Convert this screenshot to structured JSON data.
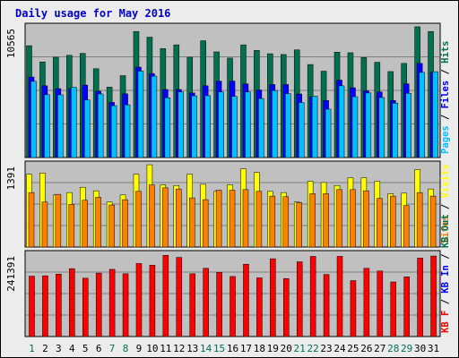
{
  "colors": {
    "background": "#ECECEC",
    "plot_bg": "#C0C0C0",
    "border": "#000000",
    "title": "#0000CC",
    "gridline": "#808080",
    "hits": "#007050",
    "files": "#0000FF",
    "pages": "#00C0FF",
    "visits": "#FFFF00",
    "sites": "#FF8000",
    "kbin": "#FF0000",
    "kbout": "#007050",
    "weekday_label": "#000000",
    "weekend_label": "#007050"
  },
  "chart_data": {
    "type": "bar",
    "title": "Daily usage for May 2016",
    "days": [
      "1",
      "2",
      "3",
      "4",
      "5",
      "6",
      "7",
      "8",
      "9",
      "10",
      "11",
      "12",
      "13",
      "14",
      "15",
      "16",
      "17",
      "18",
      "19",
      "20",
      "21",
      "22",
      "23",
      "24",
      "25",
      "26",
      "27",
      "28",
      "29",
      "30",
      "31"
    ],
    "weekend_days": [
      "1",
      "7",
      "8",
      "14",
      "15",
      "21",
      "22",
      "28",
      "29"
    ],
    "panels": [
      {
        "id": "top",
        "scale_label": "10565",
        "ymax": 10565,
        "legend": [
          {
            "text": "Pages",
            "color_key": "pages"
          },
          {
            "text": " / ",
            "color_key": "weekday_label"
          },
          {
            "text": "Files",
            "color_key": "files"
          },
          {
            "text": " / ",
            "color_key": "weekday_label"
          },
          {
            "text": "Hits",
            "color_key": "hits"
          }
        ],
        "series": [
          {
            "color_key": "hits",
            "values": [
              9040,
              7730,
              8110,
              8260,
              8420,
              7180,
              5690,
              6620,
              10190,
              9730,
              8810,
              9110,
              8110,
              9440,
              8540,
              8040,
              9110,
              8660,
              8390,
              8330,
              8700,
              7520,
              6980,
              8520,
              8470,
              8090,
              7700,
              6950,
              7610,
              10570,
              10190
            ]
          },
          {
            "color_key": "files",
            "values": [
              6510,
              5800,
              5570,
              5570,
              5860,
              5360,
              4460,
              5150,
              7310,
              6790,
              5500,
              5500,
              5220,
              5800,
              6180,
              6180,
              5950,
              5460,
              5900,
              5900,
              5140,
              4940,
              4610,
              6260,
              5640,
              5400,
              5300,
              4610,
              5960,
              7610,
              6880
            ]
          },
          {
            "color_key": "pages",
            "values": [
              6160,
              5080,
              5070,
              5680,
              4660,
              5140,
              4190,
              4260,
              6990,
              6580,
              4830,
              5300,
              4990,
              5000,
              5300,
              4940,
              5300,
              4770,
              5420,
              5170,
              4450,
              4960,
              3910,
              5800,
              4920,
              5220,
              4850,
              4400,
              5190,
              6880,
              6940
            ]
          }
        ]
      },
      {
        "id": "middle",
        "scale_label": "1391",
        "ymax": 1391,
        "legend": [
          {
            "text": "Sites",
            "color_key": "sites"
          },
          {
            "text": " / ",
            "color_key": "weekday_label"
          },
          {
            "text": "Visits",
            "color_key": "visits"
          }
        ],
        "series": [
          {
            "color_key": "visits",
            "values": [
              1230,
              1250,
              880,
              920,
              1010,
              950,
              760,
              880,
              1230,
              1390,
              1050,
              1040,
              1230,
              1060,
              940,
              1050,
              1320,
              1260,
              940,
              920,
              760,
              1110,
              1090,
              1040,
              1170,
              1170,
              1110,
              900,
              910,
              1310,
              980
            ]
          },
          {
            "color_key": "sites",
            "values": [
              920,
              760,
              890,
              720,
              790,
              840,
              710,
              800,
              940,
              1050,
              1000,
              980,
              830,
              800,
              960,
              960,
              970,
              940,
              860,
              850,
              750,
              900,
              900,
              970,
              970,
              950,
              820,
              860,
              700,
              920,
              860
            ]
          }
        ]
      },
      {
        "id": "bottom",
        "scale_label": "241391",
        "ymax": 241391,
        "legend": [
          {
            "text": "KB F",
            "color_key": "kbin"
          },
          {
            "text": " / ",
            "color_key": "weekday_label"
          },
          {
            "text": "KB In",
            "color_key": "files"
          },
          {
            "text": " / ",
            "color_key": "weekday_label"
          },
          {
            "text": "KB Out",
            "color_key": "kbout"
          }
        ],
        "series": [
          {
            "color_key": "kbin",
            "values": [
              177000,
              178000,
              183000,
              199000,
              171000,
              186000,
              197000,
              184000,
              214000,
              209000,
              238000,
              232000,
              184000,
              200000,
              188000,
              176000,
              212000,
              172000,
              228000,
              170000,
              219000,
              235000,
              182000,
              235000,
              164000,
              200000,
              192000,
              160000,
              175000,
              230000,
              236000
            ]
          }
        ]
      }
    ]
  }
}
